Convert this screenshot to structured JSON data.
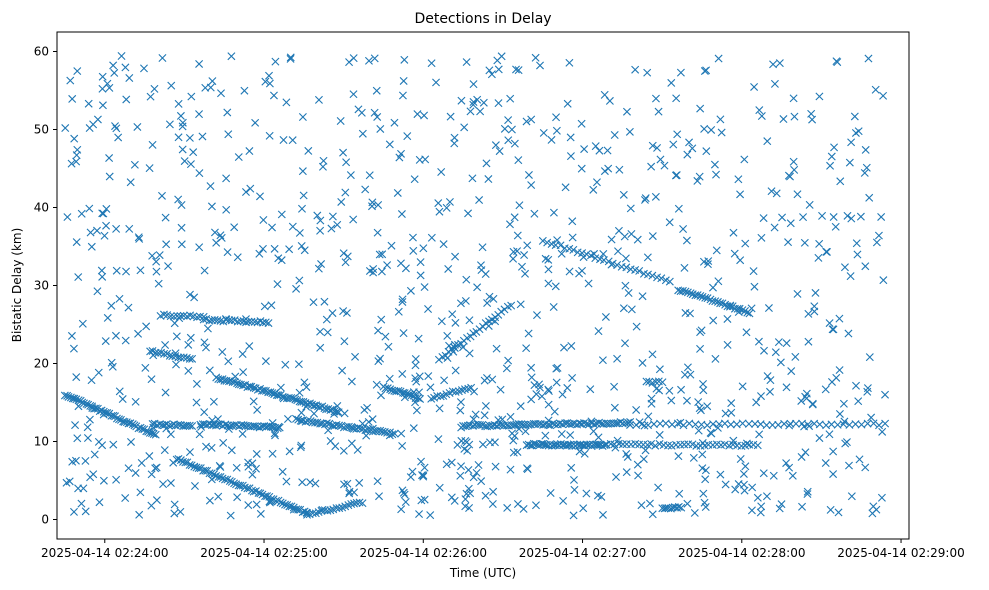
{
  "chart_data": {
    "type": "scatter",
    "title": "Detections in Delay",
    "xlabel": "Time (UTC)",
    "ylabel": "Bistatic Delay (km)",
    "marker": "x",
    "color": "#1f77b4",
    "x_unit": "minutes since 2025-04-14 02:24:00",
    "xlim": [
      -0.3,
      5.05
    ],
    "ylim": [
      -2.5,
      62.5
    ],
    "x_ticks": [
      {
        "value": 0,
        "label": "2025-04-14 02:24:00"
      },
      {
        "value": 1,
        "label": "2025-04-14 02:25:00"
      },
      {
        "value": 2,
        "label": "2025-04-14 02:26:00"
      },
      {
        "value": 3,
        "label": "2025-04-14 02:27:00"
      },
      {
        "value": 4,
        "label": "2025-04-14 02:28:00"
      },
      {
        "value": 5,
        "label": "2025-04-14 02:29:00"
      }
    ],
    "y_ticks": [
      {
        "value": 0,
        "label": "0"
      },
      {
        "value": 10,
        "label": "10"
      },
      {
        "value": 20,
        "label": "20"
      },
      {
        "value": 30,
        "label": "30"
      },
      {
        "value": 40,
        "label": "40"
      },
      {
        "value": 50,
        "label": "50"
      },
      {
        "value": 60,
        "label": "60"
      }
    ],
    "tracks": [
      {
        "name": "descending-long",
        "x_start": -0.25,
        "x_end": 0.32,
        "y_start": 16.0,
        "y_end": 10.8,
        "count": 48
      },
      {
        "name": "plateau-12-a",
        "x_start": 0.3,
        "x_end": 0.55,
        "y_start": 12.2,
        "y_end": 12.0,
        "count": 18
      },
      {
        "name": "plateau-12-b",
        "x_start": 0.6,
        "x_end": 1.1,
        "y_start": 12.2,
        "y_end": 11.8,
        "count": 36
      },
      {
        "name": "descending-to-zero",
        "x_start": 0.45,
        "x_end": 1.27,
        "y_start": 7.8,
        "y_end": 0.8,
        "count": 60
      },
      {
        "name": "zero-rebound",
        "x_start": 1.27,
        "x_end": 1.62,
        "y_start": 0.6,
        "y_end": 2.2,
        "count": 20
      },
      {
        "name": "plateau-21",
        "x_start": 0.3,
        "x_end": 0.55,
        "y_start": 21.5,
        "y_end": 20.5,
        "count": 15
      },
      {
        "name": "plateau-26",
        "x_start": 0.35,
        "x_end": 0.62,
        "y_start": 26.2,
        "y_end": 26.0,
        "count": 14
      },
      {
        "name": "plateau-25-5",
        "x_start": 0.62,
        "x_end": 1.03,
        "y_start": 25.6,
        "y_end": 25.3,
        "count": 24
      },
      {
        "name": "descending-18-to-14",
        "x_start": 0.7,
        "x_end": 1.47,
        "y_start": 18.2,
        "y_end": 13.8,
        "count": 60
      },
      {
        "name": "descending-13-to-11",
        "x_start": 1.2,
        "x_end": 1.82,
        "y_start": 12.8,
        "y_end": 11.0,
        "count": 42
      },
      {
        "name": "descending-17-to-15",
        "x_start": 1.75,
        "x_end": 1.98,
        "y_start": 17.0,
        "y_end": 15.5,
        "count": 18
      },
      {
        "name": "ascending-15-to-17",
        "x_start": 2.05,
        "x_end": 2.3,
        "y_start": 15.5,
        "y_end": 17.0,
        "count": 14
      },
      {
        "name": "ascending-12-to-13",
        "x_start": 2.25,
        "x_end": 3.3,
        "y_start": 12.0,
        "y_end": 12.4,
        "count": 70
      },
      {
        "name": "plateau-9-5-a",
        "x_start": 2.65,
        "x_end": 3.15,
        "y_start": 9.6,
        "y_end": 9.5,
        "count": 45
      },
      {
        "name": "plateau-9-5-b",
        "x_start": 3.15,
        "x_end": 4.1,
        "y_start": 9.6,
        "y_end": 9.5,
        "count": 38
      },
      {
        "name": "plateau-12-c",
        "x_start": 3.3,
        "x_end": 4.9,
        "y_start": 12.2,
        "y_end": 12.2,
        "count": 44
      },
      {
        "name": "ascending-20-to-27",
        "x_start": 2.1,
        "x_end": 2.55,
        "y_start": 20.5,
        "y_end": 27.5,
        "count": 24
      },
      {
        "name": "descending-36-to-31",
        "x_start": 2.75,
        "x_end": 3.55,
        "y_start": 35.8,
        "y_end": 30.5,
        "count": 30
      },
      {
        "name": "descending-29-to-26",
        "x_start": 3.6,
        "x_end": 4.05,
        "y_start": 29.5,
        "y_end": 26.5,
        "count": 30
      },
      {
        "name": "plateau-1-5",
        "x_start": 3.5,
        "x_end": 3.62,
        "y_start": 1.5,
        "y_end": 1.5,
        "count": 10
      },
      {
        "name": "plateau-17-5",
        "x_start": 3.4,
        "x_end": 3.5,
        "y_start": 17.6,
        "y_end": 17.6,
        "count": 6
      }
    ],
    "noise": {
      "count": 900,
      "x_range": [
        -0.25,
        4.9
      ],
      "y_range": [
        0.5,
        59.5
      ],
      "extra_count_y_0_to_20": 140,
      "seed": 20250414
    }
  }
}
